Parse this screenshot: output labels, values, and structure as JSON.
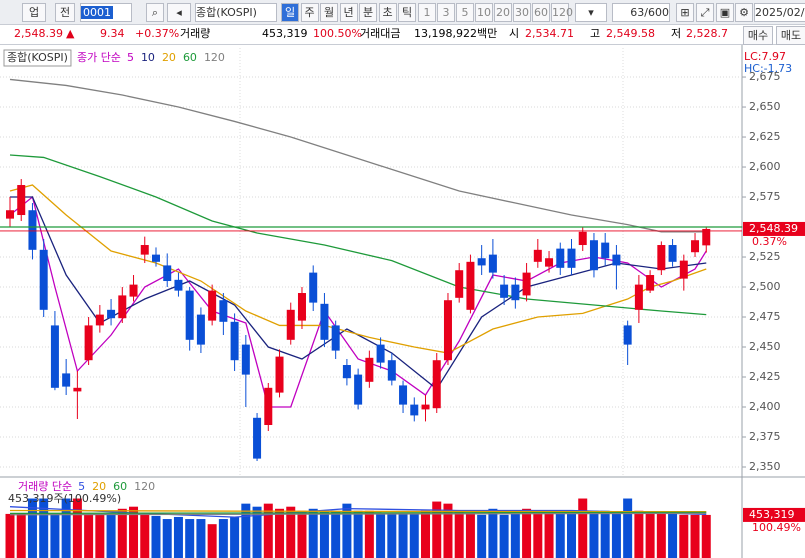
{
  "toolbar": {
    "market": "업",
    "type": "전",
    "code": "0001",
    "name": "종합(KOSPI)",
    "periods": [
      "일",
      "주",
      "월",
      "년",
      "분",
      "초",
      "틱"
    ],
    "intervals": [
      "1",
      "3",
      "5",
      "10",
      "20",
      "30",
      "60",
      "120"
    ],
    "count": "63/600",
    "date": "2025/02/"
  },
  "info_bar": {
    "price": "2,548.39",
    "arrow": "▲",
    "change": "9.34",
    "change_pct": "+0.37%",
    "volume_label": "거래량",
    "volume": "453,319",
    "volume_ratio": "100.50%",
    "amount_label": "거래대금",
    "amount": "13,198,922백만",
    "open_label": "시",
    "open": "2,534.71",
    "high_label": "고",
    "high": "2,549.58",
    "low_label": "저",
    "low": "2,528.7",
    "buy": "매수",
    "sell": "매도"
  },
  "chart_data": [
    {
      "type": "candlestick",
      "title": "종합(KOSPI)",
      "legend_title": "종가 단순",
      "lc": "LC:7.97",
      "hc": "HC:-1.73",
      "last_label": "2,548.39",
      "change_label": "0.37%",
      "up_color": "#e8001c",
      "down_color": "#0a4fd6",
      "reference_line": 2550,
      "grid": true,
      "open": [
        2557,
        2560,
        2564,
        2531,
        2468,
        2428,
        2413,
        2439,
        2468,
        2481,
        2474,
        2492,
        2527,
        2527,
        2518,
        2506,
        2497,
        2477,
        2472,
        2489,
        2471,
        2452,
        2391,
        2385,
        2412,
        2456,
        2472,
        2512,
        2486,
        2468,
        2435,
        2427,
        2421,
        2452,
        2439,
        2418,
        2402,
        2398,
        2399,
        2439,
        2491,
        2481,
        2524,
        2527,
        2502,
        2502,
        2493,
        2521,
        2517,
        2532,
        2532,
        2535,
        2539,
        2537,
        2527,
        2468,
        2481,
        2497,
        2514,
        2535,
        2507,
        2529,
        2534.71
      ],
      "high": [
        2575,
        2590,
        2570,
        2540,
        2480,
        2440,
        2430,
        2475,
        2485,
        2490,
        2500,
        2510,
        2542,
        2533,
        2528,
        2512,
        2500,
        2483,
        2502,
        2495,
        2478,
        2460,
        2395,
        2420,
        2448,
        2487,
        2500,
        2518,
        2495,
        2472,
        2440,
        2432,
        2447,
        2458,
        2445,
        2422,
        2408,
        2410,
        2445,
        2495,
        2520,
        2527,
        2535,
        2540,
        2510,
        2508,
        2520,
        2540,
        2530,
        2537,
        2540,
        2550,
        2545,
        2545,
        2535,
        2472,
        2510,
        2514,
        2538,
        2540,
        2527,
        2545,
        2549.58
      ],
      "low": [
        2550,
        2555,
        2523,
        2475,
        2414,
        2410,
        2390,
        2435,
        2462,
        2468,
        2470,
        2488,
        2520,
        2517,
        2500,
        2492,
        2447,
        2445,
        2468,
        2460,
        2430,
        2400,
        2355,
        2380,
        2408,
        2452,
        2465,
        2480,
        2450,
        2440,
        2418,
        2398,
        2416,
        2432,
        2418,
        2395,
        2388,
        2388,
        2395,
        2435,
        2487,
        2478,
        2510,
        2507,
        2485,
        2482,
        2488,
        2516,
        2512,
        2510,
        2510,
        2530,
        2508,
        2518,
        2498,
        2435,
        2470,
        2495,
        2510,
        2517,
        2497,
        2525,
        2528.7
      ],
      "close": [
        2564,
        2585,
        2531,
        2481,
        2416,
        2417,
        2416,
        2468,
        2477,
        2474,
        2493,
        2502,
        2535,
        2521,
        2505,
        2497,
        2456,
        2452,
        2497,
        2471,
        2439,
        2427,
        2357,
        2416,
        2442,
        2481,
        2495,
        2487,
        2456,
        2447,
        2424,
        2402,
        2441,
        2437,
        2422,
        2402,
        2393,
        2402,
        2439,
        2489,
        2514,
        2521,
        2518,
        2512,
        2491,
        2489,
        2512,
        2531,
        2524,
        2516,
        2516,
        2546,
        2514,
        2524,
        2518,
        2452,
        2502,
        2510,
        2535,
        2521,
        2522,
        2539,
        2548.39
      ],
      "lines": [
        {
          "name": "5",
          "color": "#c000c0",
          "x": [
            0,
            2,
            4,
            6,
            9,
            12,
            15,
            18,
            21,
            23,
            25,
            28,
            31,
            34,
            37,
            40,
            43,
            46,
            49,
            52,
            55,
            58,
            61,
            62
          ],
          "values": [
            2560,
            2575,
            2500,
            2430,
            2460,
            2500,
            2515,
            2480,
            2470,
            2400,
            2400,
            2480,
            2440,
            2430,
            2410,
            2455,
            2510,
            2505,
            2520,
            2525,
            2520,
            2500,
            2515,
            2530
          ]
        },
        {
          "name": "10",
          "color": "#1a237e",
          "x": [
            0,
            2,
            5,
            8,
            12,
            16,
            20,
            23,
            26,
            30,
            34,
            38,
            42,
            46,
            50,
            54,
            58,
            62
          ],
          "values": [
            2575,
            2575,
            2510,
            2470,
            2490,
            2505,
            2485,
            2450,
            2440,
            2465,
            2445,
            2415,
            2475,
            2500,
            2510,
            2520,
            2515,
            2520
          ]
        },
        {
          "name": "20",
          "color": "#e0a000",
          "x": [
            0,
            2,
            5,
            9,
            13,
            17,
            21,
            24,
            28,
            32,
            36,
            39,
            43,
            47,
            51,
            55,
            57,
            59,
            62
          ],
          "values": [
            2580,
            2585,
            2560,
            2530,
            2520,
            2505,
            2480,
            2468,
            2468,
            2458,
            2450,
            2445,
            2465,
            2475,
            2478,
            2490,
            2500,
            2505,
            2515
          ]
        },
        {
          "name": "60",
          "color": "#1e9a3a",
          "x": [
            0,
            3,
            8,
            13,
            18,
            22,
            28,
            34,
            40,
            46,
            52,
            58,
            62
          ],
          "values": [
            2610,
            2608,
            2592,
            2575,
            2555,
            2545,
            2535,
            2522,
            2500,
            2490,
            2485,
            2480,
            2477
          ]
        },
        {
          "name": "120",
          "color": "#808080",
          "x": [
            0,
            5,
            10,
            15,
            20,
            25,
            30,
            35,
            40,
            45,
            50,
            55,
            58,
            62
          ],
          "values": [
            2673,
            2668,
            2660,
            2650,
            2638,
            2625,
            2610,
            2595,
            2580,
            2570,
            2560,
            2552,
            2546,
            2546
          ]
        }
      ],
      "ylim": [
        2342.5,
        2699.2
      ],
      "yticks": [
        {
          "value": 2350,
          "label": "2,350"
        },
        {
          "value": 2375,
          "label": "2,375"
        },
        {
          "value": 2400,
          "label": "2,400"
        },
        {
          "value": 2425,
          "label": "2,425"
        },
        {
          "value": 2450,
          "label": "2,450"
        },
        {
          "value": 2475,
          "label": "2,475"
        },
        {
          "value": 2500,
          "label": "2,500"
        },
        {
          "value": 2525,
          "label": "2,525"
        },
        {
          "value": 2550,
          "label": "2,550"
        },
        {
          "value": 2575,
          "label": "2,575"
        },
        {
          "value": 2600,
          "label": "2,600"
        },
        {
          "value": 2625,
          "label": "2,625"
        },
        {
          "value": 2650,
          "label": "2,650"
        },
        {
          "value": 2675,
          "label": "2,675"
        }
      ]
    },
    {
      "type": "bar",
      "legend_title": "거래량 단순",
      "summary": "453,319주(100.49%)",
      "last_label": "453,319",
      "ratio_label": "100.49%",
      "values": [
        464000,
        464000,
        626000,
        626000,
        464000,
        626000,
        626000,
        464000,
        464000,
        464000,
        518000,
        540000,
        464000,
        443000,
        410000,
        432000,
        410000,
        410000,
        356000,
        410000,
        432000,
        572000,
        540000,
        572000,
        518000,
        540000,
        497000,
        518000,
        497000,
        497000,
        572000,
        497000,
        497000,
        464000,
        464000,
        464000,
        464000,
        497000,
        594000,
        572000,
        497000,
        475000,
        454000,
        518000,
        454000,
        464000,
        518000,
        497000,
        464000,
        464000,
        486000,
        626000,
        497000,
        497000,
        464000,
        626000,
        497000,
        475000,
        464000,
        464000,
        454000,
        454000,
        453319
      ],
      "lines": [
        {
          "name": "5",
          "color": "#3050e0",
          "x": [
            0,
            10,
            20,
            30,
            40,
            50,
            62
          ],
          "values": [
            540000,
            480000,
            430000,
            520000,
            500000,
            500000,
            460000
          ]
        },
        {
          "name": "20",
          "color": "#e0a000",
          "x": [
            0,
            31,
            62
          ],
          "values": [
            500000,
            490000,
            488000
          ]
        },
        {
          "name": "60",
          "color": "#1e9a3a",
          "x": [
            0,
            62
          ],
          "values": [
            470000,
            480000
          ]
        },
        {
          "name": "120",
          "color": "#808080",
          "x": [
            0,
            62
          ],
          "values": [
            455000,
            470000
          ]
        }
      ],
      "ylim": [
        0,
        842000
      ]
    }
  ]
}
